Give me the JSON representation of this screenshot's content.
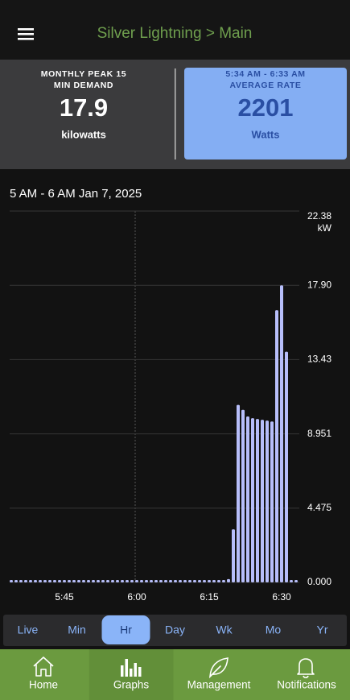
{
  "header": {
    "title": "Silver Lightning > Main"
  },
  "stats": [
    {
      "label_lines": [
        "MONTHLY PEAK 15",
        "MIN DEMAND"
      ],
      "value": "17.9",
      "unit": "kilowatts"
    },
    {
      "label_lines": [
        "5:34 AM - 6:33 AM",
        "AVERAGE RATE"
      ],
      "value": "2201",
      "unit": "Watts"
    }
  ],
  "chart_data": {
    "type": "bar",
    "title": "5 AM - 6 AM Jan 7, 2025",
    "categories": [
      null,
      null,
      null,
      null,
      null,
      null,
      null,
      null,
      null,
      null,
      null,
      "5:45",
      null,
      null,
      null,
      null,
      null,
      null,
      null,
      null,
      null,
      null,
      null,
      null,
      null,
      null,
      "6:00",
      null,
      null,
      null,
      null,
      null,
      null,
      null,
      null,
      null,
      null,
      null,
      null,
      null,
      null,
      "6:15",
      null,
      null,
      null,
      null,
      null,
      null,
      null,
      null,
      null,
      null,
      null,
      null,
      null,
      null,
      "6:30",
      null,
      null,
      null
    ],
    "values": [
      0,
      0,
      0,
      0,
      0,
      0,
      0,
      0,
      0,
      0,
      0,
      0,
      0,
      0,
      0,
      0,
      0,
      0,
      0,
      0,
      0,
      0,
      0,
      0,
      0,
      0,
      0,
      0,
      0,
      0,
      0,
      0,
      0,
      0,
      0,
      0,
      0,
      0,
      0,
      0,
      0,
      0,
      0,
      0,
      0,
      0.2,
      3.2,
      10.7,
      10.4,
      10.0,
      9.9,
      9.85,
      9.8,
      9.75,
      9.7,
      16.4,
      17.9,
      13.9,
      0,
      0
    ],
    "color": "#b7befa",
    "ylim": [
      0,
      22.38
    ],
    "yticks": [
      {
        "value": 0,
        "label": "0.000"
      },
      4.475,
      8.951,
      13.43,
      {
        "value": 17.9,
        "label": "17.90"
      },
      22.38
    ],
    "y_unit": "kW",
    "grid": true
  },
  "tabs": {
    "items": [
      "Live",
      "Min",
      "Hr",
      "Day",
      "Wk",
      "Mo",
      "Yr"
    ],
    "selected": 2
  },
  "nav": {
    "items": [
      "Home",
      "Graphs",
      "Management",
      "Notifications"
    ],
    "selected": 1
  }
}
